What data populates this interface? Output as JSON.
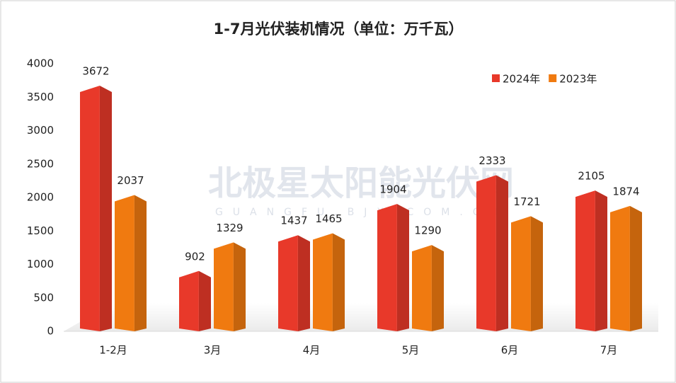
{
  "chart_data": {
    "type": "bar3d",
    "title": "1-7月光伏装机情况（单位：万千瓦）",
    "watermark": {
      "title": "北极星太阳能光伏网",
      "subtitle": "GUANGFU.BJX.COM.CN"
    },
    "categories": [
      "1-2月",
      "3月",
      "4月",
      "5月",
      "6月",
      "7月"
    ],
    "series": [
      {
        "name": "2024年",
        "color": "#e8392a",
        "values": [
          3672,
          902,
          1437,
          1904,
          2333,
          2105
        ]
      },
      {
        "name": "2023年",
        "color": "#f07a10",
        "values": [
          2037,
          1329,
          1465,
          1290,
          1721,
          1874
        ]
      }
    ],
    "ylim": [
      0,
      4000
    ],
    "yticks": [
      0,
      500,
      1000,
      1500,
      2000,
      2500,
      3000,
      3500,
      4000
    ],
    "legend": "top-right"
  }
}
